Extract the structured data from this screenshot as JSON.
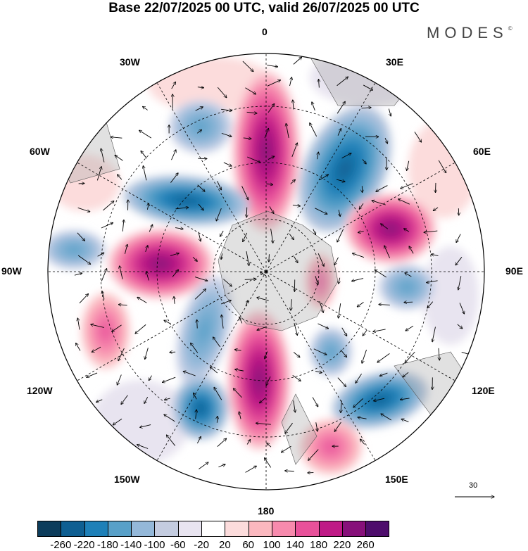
{
  "title": "Base 22/07/2025 00 UTC, valid 26/07/2025 00 UTC",
  "logo": "MODES",
  "logo_mark": "©",
  "longitude_labels": {
    "n": "0",
    "ne": "30E",
    "e60": "60E",
    "e90": "90E",
    "e120": "120E",
    "e150": "150E",
    "s": "180",
    "w150": "150W",
    "w120": "120W",
    "w90": "90W",
    "w60": "60W",
    "w30": "30W"
  },
  "vector_reference": "30",
  "colorbar": {
    "colors": [
      "#0d3d5c",
      "#0f5f92",
      "#1e80b8",
      "#58a0c8",
      "#94b8d9",
      "#c4cce0",
      "#e8e4f0",
      "#ffffff",
      "#fcdcdc",
      "#fbb8bf",
      "#f78aad",
      "#e8519a",
      "#bf1a86",
      "#87107a",
      "#4e0d6c"
    ],
    "ticks": [
      "-260",
      "-220",
      "-180",
      "-140",
      "-100",
      "-60",
      "-20",
      "20",
      "60",
      "100",
      "140",
      "180",
      "220",
      "260"
    ]
  }
}
